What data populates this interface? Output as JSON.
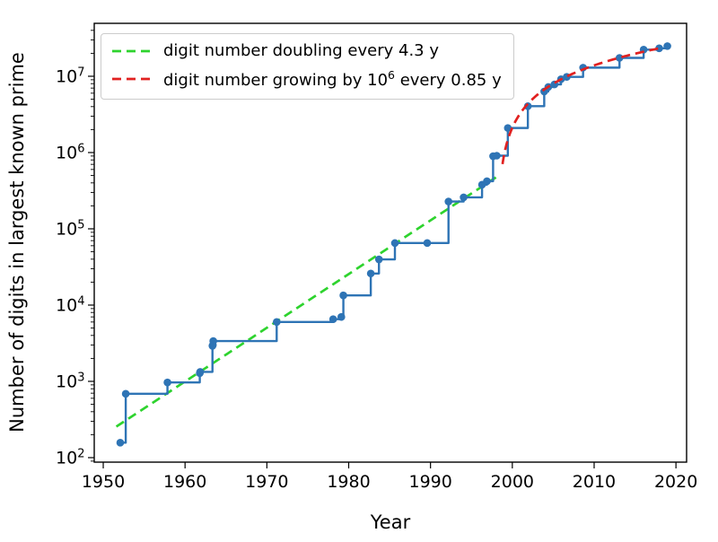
{
  "figure": {
    "xlabel": "Year",
    "ylabel": "Number of digits in largest known prime",
    "legend": {
      "entries": [
        {
          "label": "digit number doubling every 4.3 y",
          "label_pre": "",
          "label_sup": "",
          "label_post": "",
          "color": "#2ed32e",
          "style": "dashed"
        },
        {
          "label": "digit number growing by 10^6 every 0.85 y",
          "label_pre": "digit number growing by 10",
          "label_sup": "6",
          "label_post": " every 0.85 y",
          "color": "#e12120",
          "style": "dashed"
        }
      ]
    }
  },
  "chart_data": {
    "type": "line",
    "title": "",
    "xlabel": "Year",
    "ylabel": "Number of digits in largest known prime",
    "yscale": "log",
    "grid": false,
    "legend_position": "upper left",
    "legend": [
      "digit number doubling every 4.3 y",
      "digit number growing by 10^6 every 0.85 y"
    ],
    "x_ticks": [
      1950,
      1960,
      1970,
      1980,
      1990,
      2000,
      2010,
      2020
    ],
    "y_tick_exponents": [
      2,
      3,
      4,
      5,
      6,
      7
    ],
    "xlim": [
      1948.9,
      2021.3
    ],
    "ylim_log10": [
      1.941,
      7.694
    ],
    "series": [
      {
        "name": "largest-known-prime-record-digits",
        "type": "step-post-with-markers",
        "color": "#2e74b5",
        "points": [
          [
            1952.08,
            157
          ],
          [
            1952.75,
            687
          ],
          [
            1957.85,
            969
          ],
          [
            1961.8,
            1281
          ],
          [
            1961.85,
            1332
          ],
          [
            1963.35,
            2917
          ],
          [
            1963.4,
            2993
          ],
          [
            1963.45,
            3376
          ],
          [
            1971.2,
            6002
          ],
          [
            1978.1,
            6533
          ],
          [
            1979.1,
            6987
          ],
          [
            1979.35,
            13395
          ],
          [
            1982.7,
            25962
          ],
          [
            1983.7,
            39751
          ],
          [
            1985.65,
            65050
          ],
          [
            1989.6,
            65087
          ],
          [
            1992.2,
            227832
          ],
          [
            1994.05,
            258716
          ],
          [
            1996.3,
            378632
          ],
          [
            1996.9,
            420921
          ],
          [
            1997.65,
            895932
          ],
          [
            1998.1,
            909526
          ],
          [
            1999.45,
            2098960
          ],
          [
            2001.9,
            4053946
          ],
          [
            2003.9,
            6320430
          ],
          [
            2004.4,
            7235733
          ],
          [
            2005.15,
            7816230
          ],
          [
            2005.95,
            9152052
          ],
          [
            2006.65,
            9808358
          ],
          [
            2008.65,
            12978189
          ],
          [
            2013.1,
            17425170
          ],
          [
            2016.05,
            22338618
          ],
          [
            2017.95,
            23249425
          ],
          [
            2018.95,
            24862048
          ]
        ]
      },
      {
        "name": "exponential-fit-doubling-every-4.3y",
        "type": "dashed-line",
        "color": "#2ed32e",
        "points": [
          [
            1951.6,
            255
          ],
          [
            1998.35,
            500000
          ]
        ]
      },
      {
        "name": "linear-fit-1e6-digits-every-0.85y",
        "type": "dashed-curve",
        "color": "#e12120",
        "model": "digits = (year - 1998.2) * 1e6 / 0.85",
        "year_range": [
          1998.8,
          2018.35
        ]
      }
    ]
  }
}
